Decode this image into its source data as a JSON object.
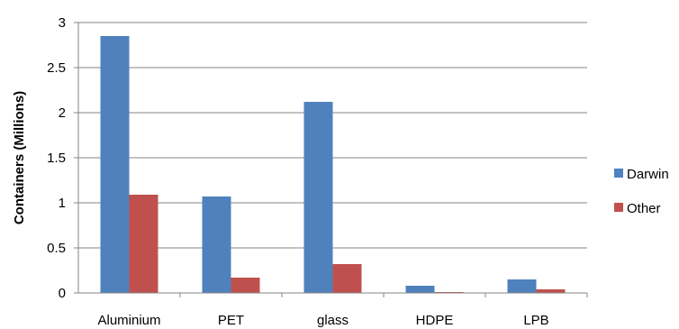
{
  "chart_data": {
    "type": "bar",
    "title": "",
    "xlabel": "",
    "ylabel": "Containers (Millions)",
    "categories": [
      "Aluminium",
      "PET",
      "glass",
      "HDPE",
      "LPB"
    ],
    "series": [
      {
        "name": "Darwin",
        "color": "#4f81bd",
        "values": [
          2.85,
          1.07,
          2.12,
          0.08,
          0.15
        ]
      },
      {
        "name": "Other",
        "color": "#c0504d",
        "values": [
          1.09,
          0.17,
          0.32,
          0.01,
          0.04
        ]
      }
    ],
    "ylim": [
      0,
      3
    ],
    "yticks": [
      "0",
      "0.5",
      "1",
      "1.5",
      "2",
      "2.5",
      "3"
    ],
    "grid": true,
    "legend": "right"
  }
}
